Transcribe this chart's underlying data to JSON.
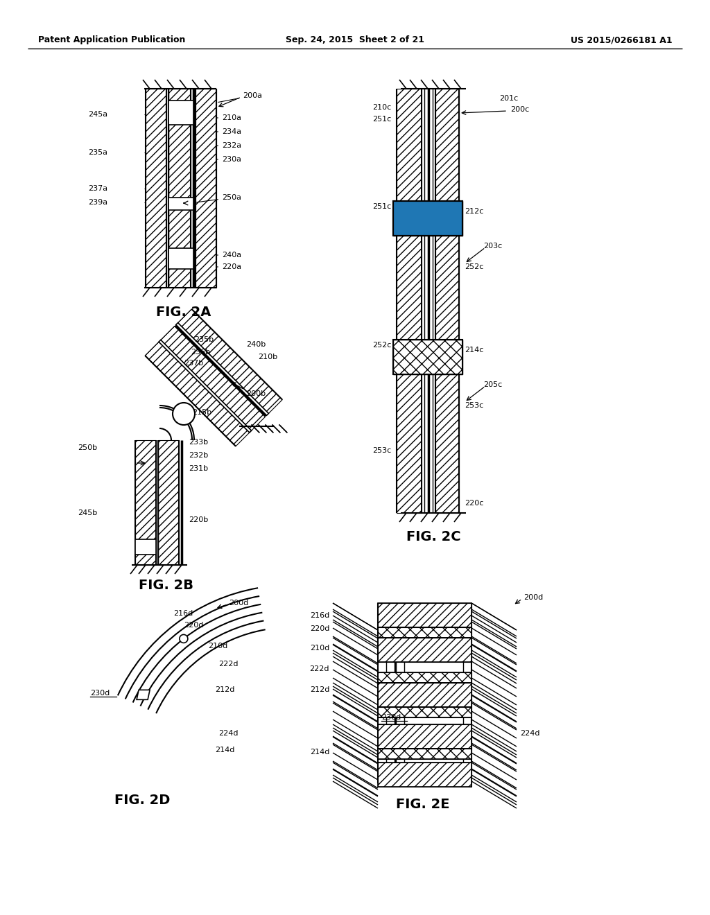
{
  "bg_color": "#ffffff",
  "header_left": "Patent Application Publication",
  "header_center": "Sep. 24, 2015  Sheet 2 of 21",
  "header_right": "US 2015/0266181 A1"
}
